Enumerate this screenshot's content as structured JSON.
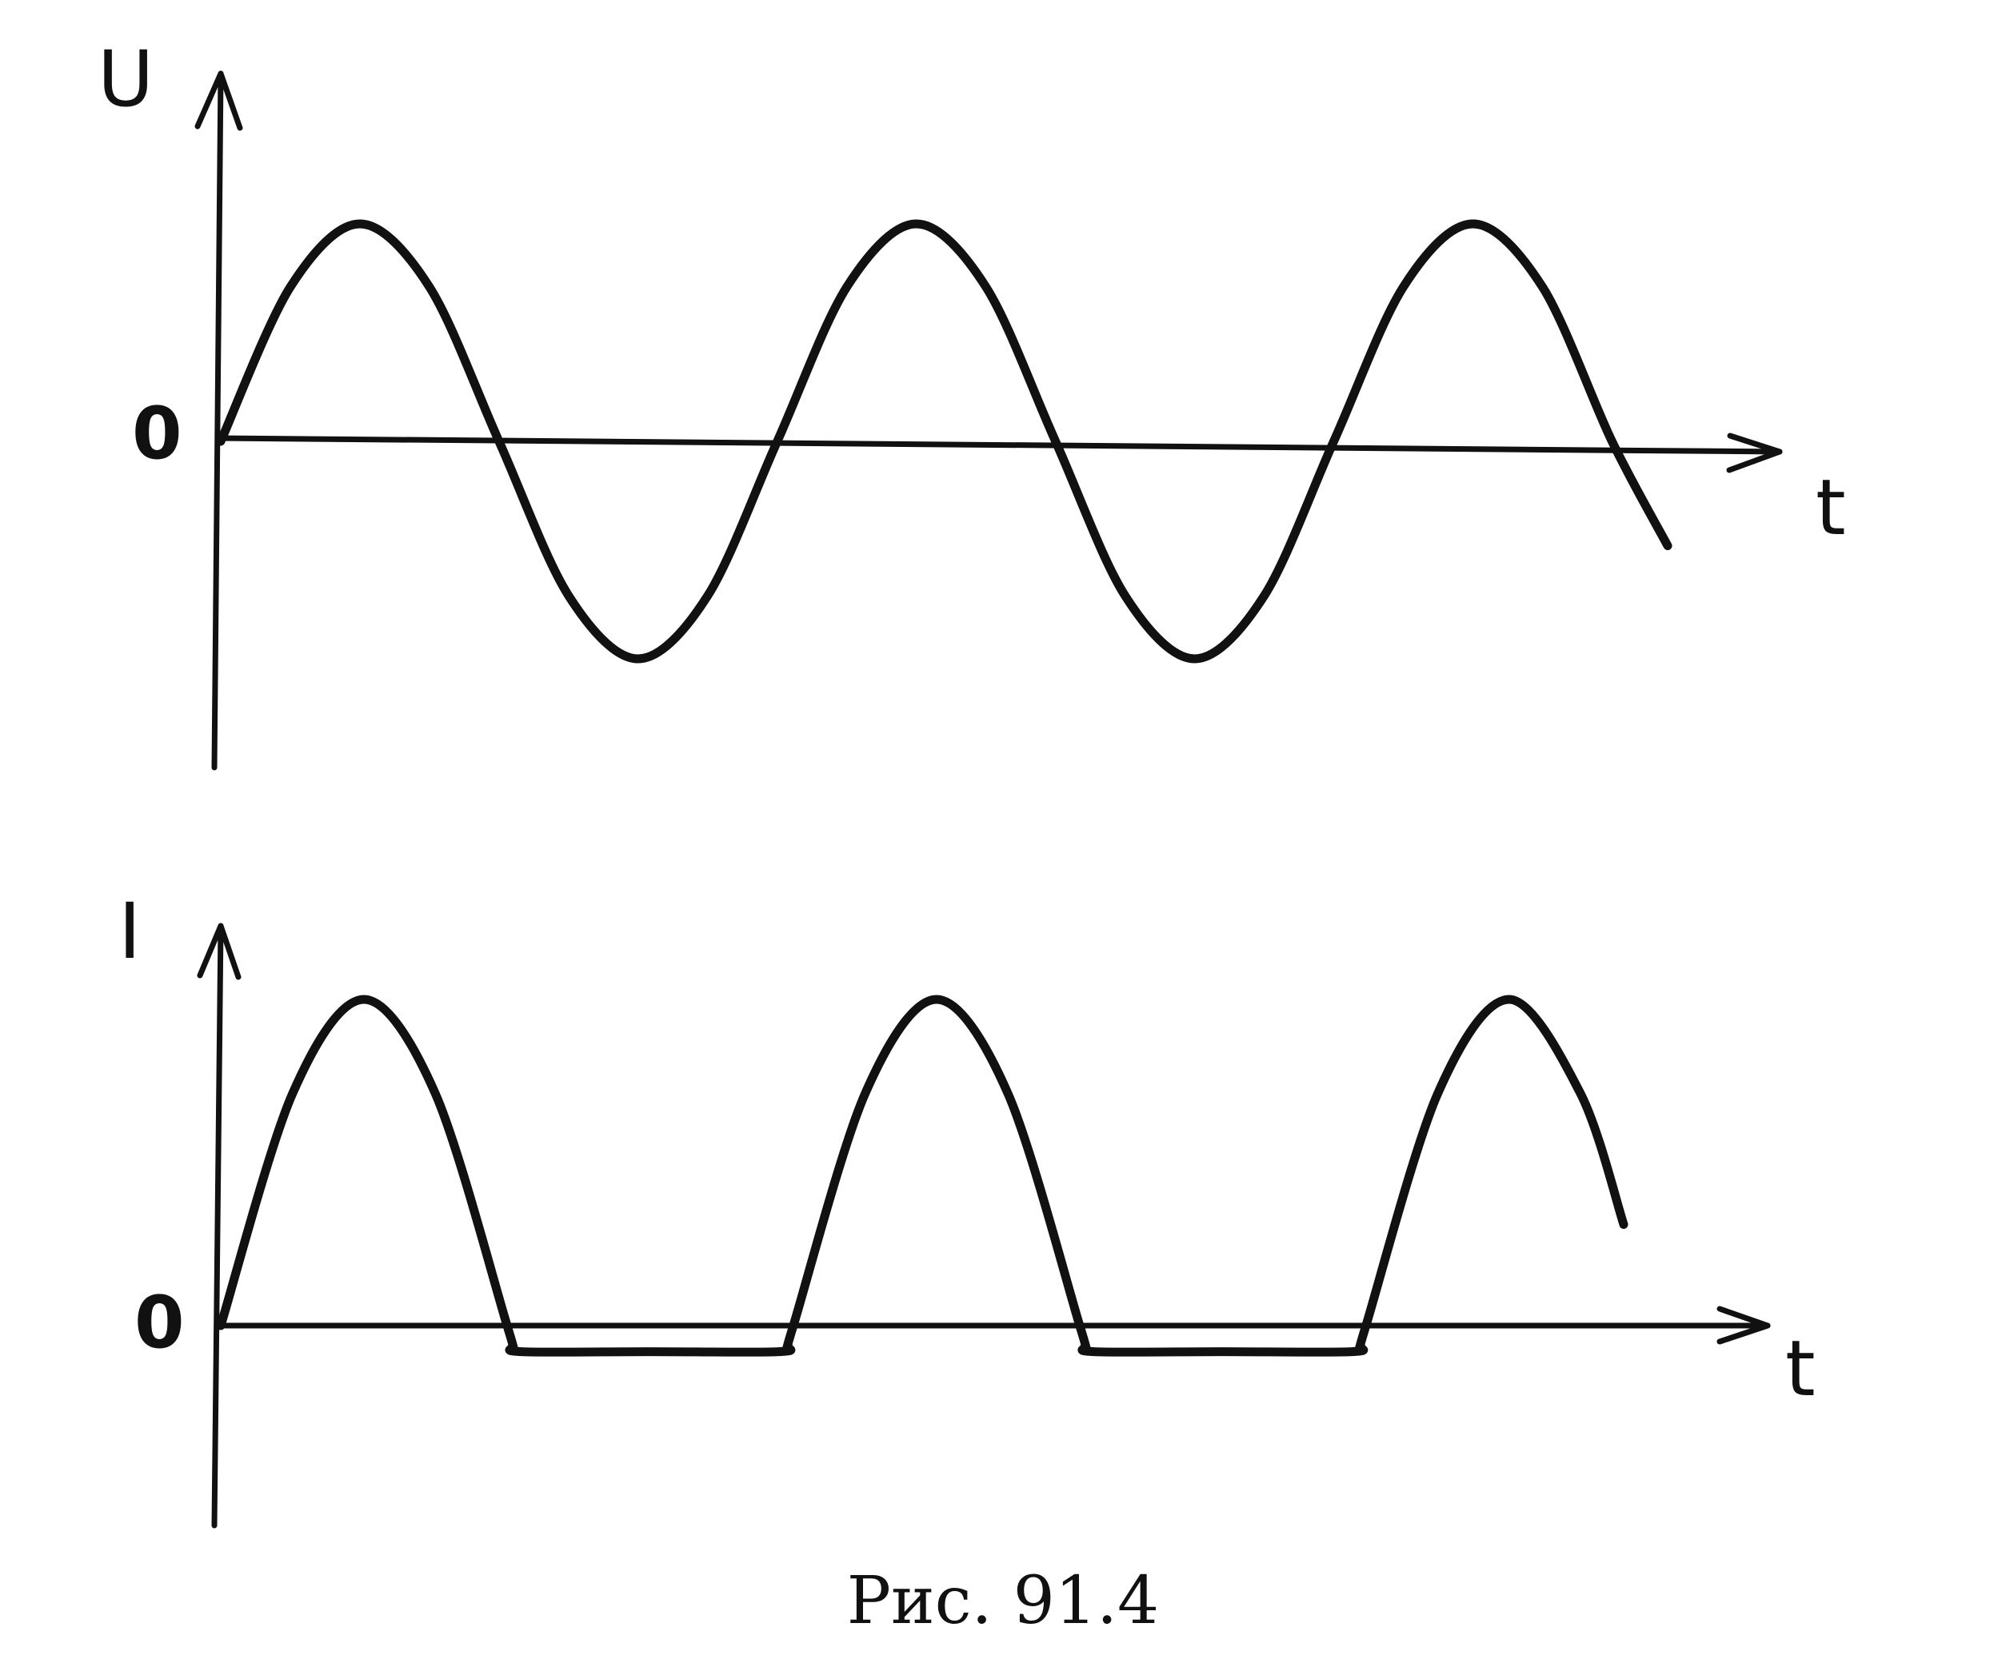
{
  "caption": "Рис. 91.4",
  "chart_data": [
    {
      "type": "line",
      "title": "",
      "ylabel": "U",
      "xlabel": "t",
      "y_zero_label": "0",
      "ylim": [
        -1.05,
        1.05
      ],
      "xlim": [
        0,
        5.2
      ],
      "grid": false,
      "legend": "none",
      "series": [
        {
          "values_description_free": true,
          "x": [
            0,
            0.25,
            0.5,
            0.75,
            1.0,
            1.25,
            1.5,
            1.75,
            2.0,
            2.25,
            2.5,
            2.75,
            3.0,
            3.25,
            3.5,
            3.75,
            4.0,
            4.25,
            4.5,
            4.75,
            5.0,
            5.2
          ],
          "y": [
            0,
            0.71,
            1.0,
            0.71,
            0,
            -0.71,
            -1.0,
            -0.71,
            0,
            0.71,
            1.0,
            0.71,
            0,
            -0.71,
            -1.0,
            -0.71,
            0,
            0.71,
            1.0,
            0.71,
            0,
            -0.48
          ]
        }
      ]
    },
    {
      "type": "line",
      "title": "",
      "ylabel": "I",
      "xlabel": "t",
      "y_zero_label": "0",
      "ylim": [
        -0.2,
        1.05
      ],
      "xlim": [
        0,
        5.2
      ],
      "grid": false,
      "legend": "none",
      "series": [
        {
          "x": [
            0,
            0.25,
            0.5,
            0.75,
            1.0,
            1.02,
            1.05,
            1.5,
            1.95,
            1.98,
            2.0,
            2.25,
            2.5,
            2.75,
            3.0,
            3.02,
            3.05,
            3.5,
            3.95,
            3.98,
            4.0,
            4.25,
            4.5,
            4.75,
            4.9
          ],
          "y": [
            0,
            0.71,
            1.0,
            0.71,
            0,
            -0.06,
            -0.08,
            -0.08,
            -0.08,
            -0.06,
            0,
            0.71,
            1.0,
            0.71,
            0,
            -0.06,
            -0.08,
            -0.08,
            -0.08,
            -0.06,
            0,
            0.71,
            1.0,
            0.71,
            0.31
          ]
        }
      ]
    }
  ]
}
